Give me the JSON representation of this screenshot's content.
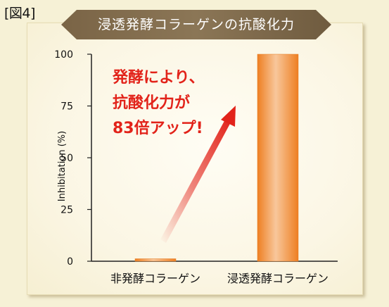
{
  "figure_label": "[図4]",
  "title": "浸透発酵コラーゲンの抗酸化力",
  "annotation": {
    "line1": "発酵により、",
    "line2": "抗酸化力が",
    "line3": "83倍アップ!"
  },
  "colors": {
    "bar": "#f08a2c",
    "annotation": "#e2231a",
    "banner": "#7f6a4c"
  },
  "chart_data": {
    "type": "bar",
    "categories": [
      "非発酵コラーゲン",
      "浸透発酵コラーゲン"
    ],
    "values": [
      1.2,
      100
    ],
    "ylabel": "Inhibitation (%)",
    "xlabel": "",
    "ylim": [
      0,
      100
    ],
    "yticks": [
      0,
      25,
      50,
      75,
      100
    ],
    "grid": false
  }
}
